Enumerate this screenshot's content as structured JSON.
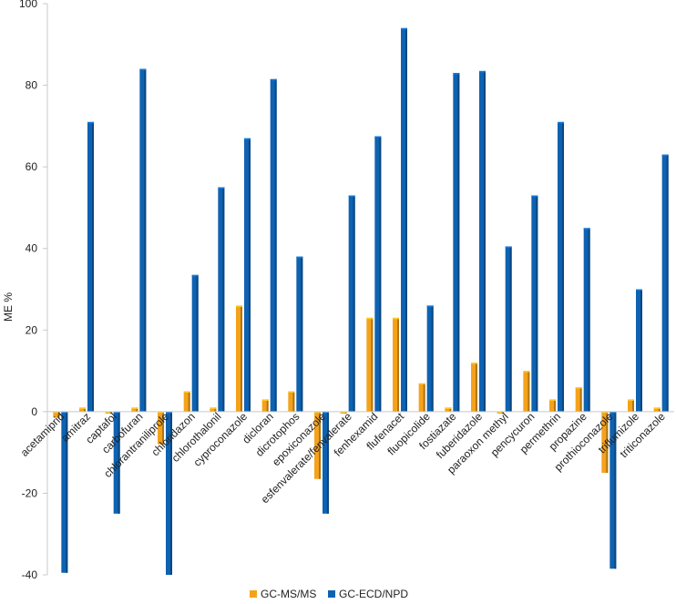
{
  "chart_data": {
    "type": "bar",
    "title": "",
    "xlabel": "",
    "ylabel": "ME %",
    "ylim": [
      -40,
      100
    ],
    "yticks": [
      -40,
      -20,
      0,
      20,
      40,
      60,
      80,
      100
    ],
    "grid": false,
    "legend_position": "bottom",
    "categories": [
      "acetamiprid",
      "amitraz",
      "captafol",
      "carbofuran",
      "chlorantraniliprole",
      "chloridazon",
      "chlorothalonil",
      "cyproconazole",
      "dicloran",
      "dicrotophos",
      "epoxiconazole",
      "esfenvalerate/fenvalerate",
      "fenhexamid",
      "flufenacet",
      "fluopicolide",
      "fostiazate",
      "fuberidazole",
      "paraoxon methyl",
      "pencycuron",
      "permethrin",
      "propazine",
      "prothioconazole",
      "triflumizole",
      "triticonazole"
    ],
    "series": [
      {
        "name": "GC-MS/MS",
        "color": "#F5A21B",
        "values": [
          -1.5,
          1,
          -0.5,
          1,
          -8,
          5,
          1,
          26,
          3,
          5,
          -16.5,
          -0.5,
          23,
          23,
          7,
          1,
          12,
          -0.5,
          10,
          3,
          6,
          -15,
          3,
          1
        ]
      },
      {
        "name": "GC-ECD/NPD",
        "color": "#0E62B2",
        "values": [
          -39.5,
          71,
          -25,
          84,
          -40,
          33.5,
          55,
          67,
          81.5,
          38,
          -25,
          53,
          67.5,
          94,
          26,
          83,
          83.5,
          40.5,
          53,
          71,
          45,
          -38.5,
          30,
          63
        ]
      }
    ]
  }
}
